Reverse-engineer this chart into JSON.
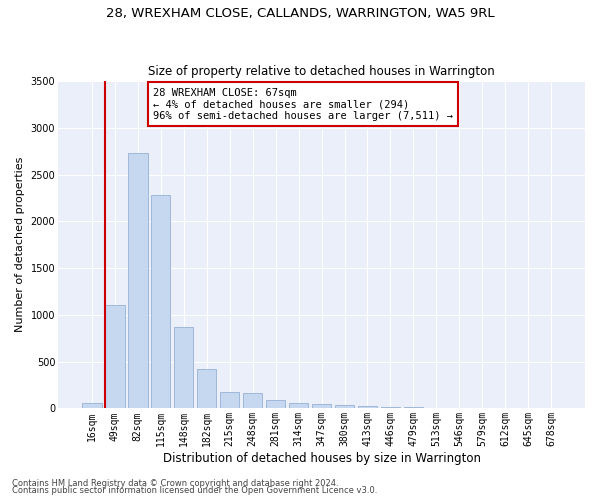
{
  "title": "28, WREXHAM CLOSE, CALLANDS, WARRINGTON, WA5 9RL",
  "subtitle": "Size of property relative to detached houses in Warrington",
  "xlabel": "Distribution of detached houses by size in Warrington",
  "ylabel": "Number of detached properties",
  "footer_line1": "Contains HM Land Registry data © Crown copyright and database right 2024.",
  "footer_line2": "Contains public sector information licensed under the Open Government Licence v3.0.",
  "bar_labels": [
    "16sqm",
    "49sqm",
    "82sqm",
    "115sqm",
    "148sqm",
    "182sqm",
    "215sqm",
    "248sqm",
    "281sqm",
    "314sqm",
    "347sqm",
    "380sqm",
    "413sqm",
    "446sqm",
    "479sqm",
    "513sqm",
    "546sqm",
    "579sqm",
    "612sqm",
    "645sqm",
    "678sqm"
  ],
  "bar_values": [
    55,
    1110,
    2730,
    2280,
    870,
    420,
    175,
    165,
    90,
    60,
    50,
    35,
    30,
    20,
    10,
    0,
    0,
    0,
    0,
    0,
    0
  ],
  "bar_color": "#c5d8f0",
  "bar_edge_color": "#a0b8d8",
  "vline_color": "#cc0000",
  "annotation_text": "28 WREXHAM CLOSE: 67sqm\n← 4% of detached houses are smaller (294)\n96% of semi-detached houses are larger (7,511) →",
  "annotation_box_color": "#cc0000",
  "ylim": [
    0,
    3500
  ],
  "yticks": [
    0,
    500,
    1000,
    1500,
    2000,
    2500,
    3000,
    3500
  ],
  "title_fontsize": 9.5,
  "subtitle_fontsize": 8.5,
  "xlabel_fontsize": 8.5,
  "ylabel_fontsize": 8,
  "tick_fontsize": 7,
  "annotation_fontsize": 7.5,
  "footer_fontsize": 6,
  "plot_bg_color": "#eaeff9",
  "grid_color": "#ffffff"
}
